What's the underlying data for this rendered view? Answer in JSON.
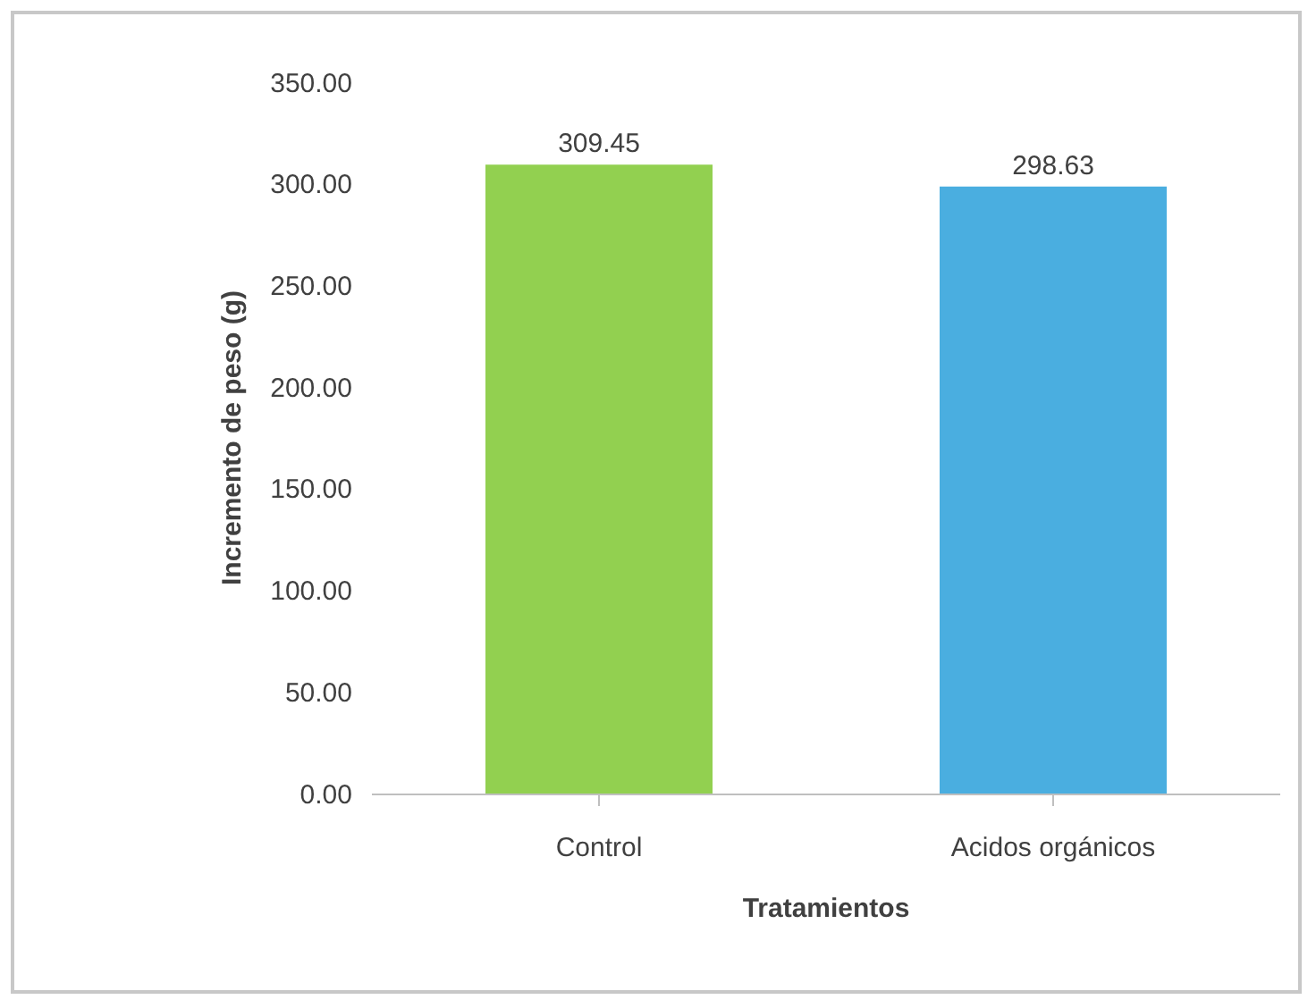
{
  "chart_data": {
    "type": "bar",
    "xlabel": "Tratamientos",
    "ylabel": "Incremento de peso (g)",
    "categories": [
      "Control",
      "Acidos orgánicos"
    ],
    "values": [
      309.45,
      298.63
    ],
    "colors": [
      "#92d050",
      "#4aaee0"
    ],
    "ylim": [
      0,
      350
    ],
    "yticks": [
      {
        "value": 0,
        "label": "0.00"
      },
      {
        "value": 50,
        "label": "50.00"
      },
      {
        "value": 100,
        "label": "100.00"
      },
      {
        "value": 150,
        "label": "150.00"
      },
      {
        "value": 200,
        "label": "200.00"
      },
      {
        "value": 250,
        "label": "250.00"
      },
      {
        "value": 300,
        "label": "300.00"
      },
      {
        "value": 350,
        "label": "350.00"
      }
    ],
    "data_labels": true,
    "grid": false,
    "legend": false
  }
}
